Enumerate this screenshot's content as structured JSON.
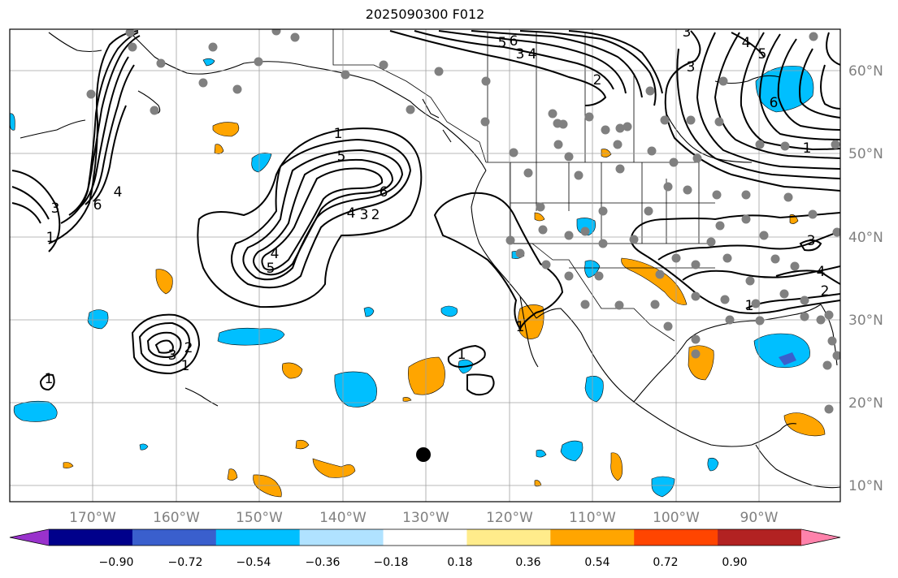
{
  "title": "2025090300 F012",
  "lon_labels": [
    "170°W",
    "160°W",
    "150°W",
    "140°W",
    "130°W",
    "120°W",
    "110°W",
    "100°W",
    "90°W"
  ],
  "lat_labels": [
    "60°N",
    "50°N",
    "40°N",
    "30°N",
    "20°N",
    "10°N"
  ],
  "colorbar": {
    "tick_labels": [
      "−0.90",
      "−0.72",
      "−0.54",
      "−0.36",
      "−0.18",
      "0.18",
      "0.36",
      "0.54",
      "0.72",
      "0.90"
    ],
    "colors": [
      "#9932cc",
      "#00008b",
      "#3a5fcd",
      "#00bfff",
      "#b0e2ff",
      "#ffffff",
      "#ffec8b",
      "#ffa500",
      "#ff4500",
      "#b22222",
      "#ff82ab"
    ]
  },
  "contour_labels": [
    "1",
    "2",
    "3",
    "4",
    "5",
    "6"
  ],
  "colors": {
    "contour": "#000000",
    "station": "#808080",
    "marker": "#000000",
    "grid": "#a0a0a0",
    "axis_label": "#808080",
    "positive_fill": "#ffa500",
    "negative_fill": "#00bfff"
  }
}
